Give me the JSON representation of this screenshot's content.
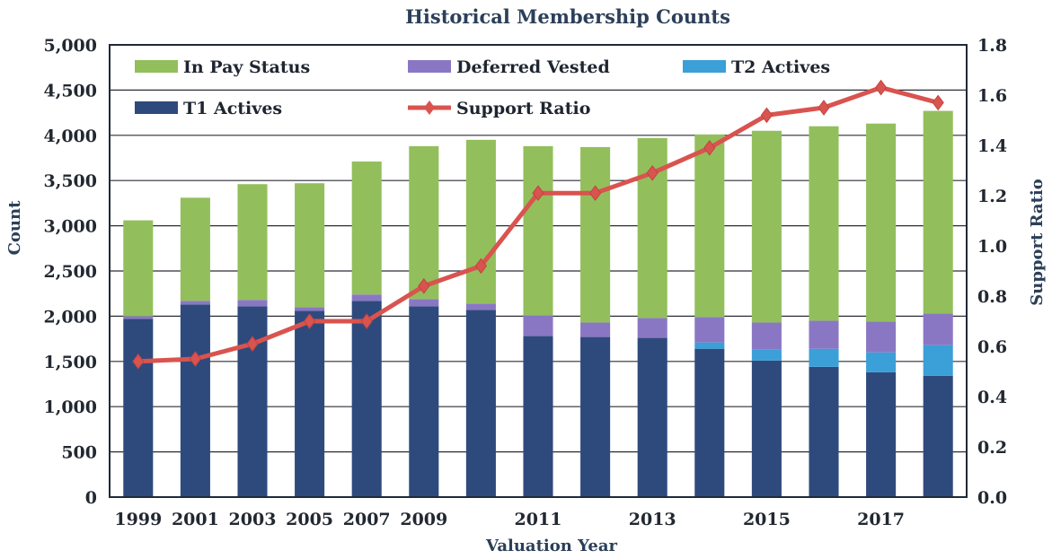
{
  "chart_data": {
    "type": "bar",
    "title": "Historical Membership Counts",
    "xlabel": "Valuation Year",
    "ylabel": "Count",
    "y2label": "Support Ratio",
    "ylim": [
      0,
      5000
    ],
    "y2lim": [
      0,
      1.8
    ],
    "yticks": [
      "0",
      "500",
      "1,000",
      "1,500",
      "2,000",
      "2,500",
      "3,000",
      "3,500",
      "4,000",
      "4,500",
      "5,000"
    ],
    "y2ticks": [
      "0.0",
      "0.2",
      "0.4",
      "0.6",
      "0.8",
      "1.0",
      "1.2",
      "1.4",
      "1.6",
      "1.8"
    ],
    "xtick_labels": [
      "1999",
      "2001",
      "2003",
      "2005",
      "2007",
      "2009",
      "2011",
      "2013",
      "2015",
      "2017"
    ],
    "grid": true,
    "legend_position": "top",
    "categories": [
      "1999",
      "2001",
      "2003",
      "2005",
      "2007",
      "2009",
      "2010",
      "2011",
      "2012",
      "2013",
      "2014",
      "2015",
      "2016",
      "2017",
      "2018"
    ],
    "series": [
      {
        "name": "T1 Actives",
        "kind": "bar",
        "color": "#2e4a7d",
        "values": [
          1970,
          2130,
          2110,
          2060,
          2170,
          2110,
          2070,
          1780,
          1770,
          1760,
          1640,
          1510,
          1440,
          1380,
          1340
        ]
      },
      {
        "name": "T2 Actives",
        "kind": "bar",
        "color": "#3b9fd8",
        "values": [
          0,
          0,
          0,
          0,
          0,
          0,
          0,
          0,
          0,
          0,
          70,
          120,
          200,
          220,
          340
        ]
      },
      {
        "name": "Deferred Vested",
        "kind": "bar",
        "color": "#8a77c4",
        "values": [
          30,
          40,
          70,
          40,
          70,
          80,
          70,
          230,
          160,
          220,
          280,
          300,
          310,
          340,
          350
        ]
      },
      {
        "name": "In Pay Status",
        "kind": "bar",
        "color": "#92bf5c",
        "values": [
          1060,
          1140,
          1280,
          1370,
          1470,
          1690,
          1810,
          1870,
          1940,
          1990,
          2020,
          2120,
          2150,
          2190,
          2240
        ]
      },
      {
        "name": "Support Ratio",
        "kind": "line",
        "axis": "right",
        "color": "#d9534f",
        "values": [
          0.54,
          0.55,
          0.61,
          0.7,
          0.7,
          0.84,
          0.92,
          1.21,
          1.21,
          1.29,
          1.39,
          1.52,
          1.55,
          1.63,
          1.57
        ]
      }
    ],
    "legend_order": [
      "In Pay Status",
      "Deferred Vested",
      "T2 Actives",
      "T1 Actives",
      "Support Ratio"
    ]
  }
}
